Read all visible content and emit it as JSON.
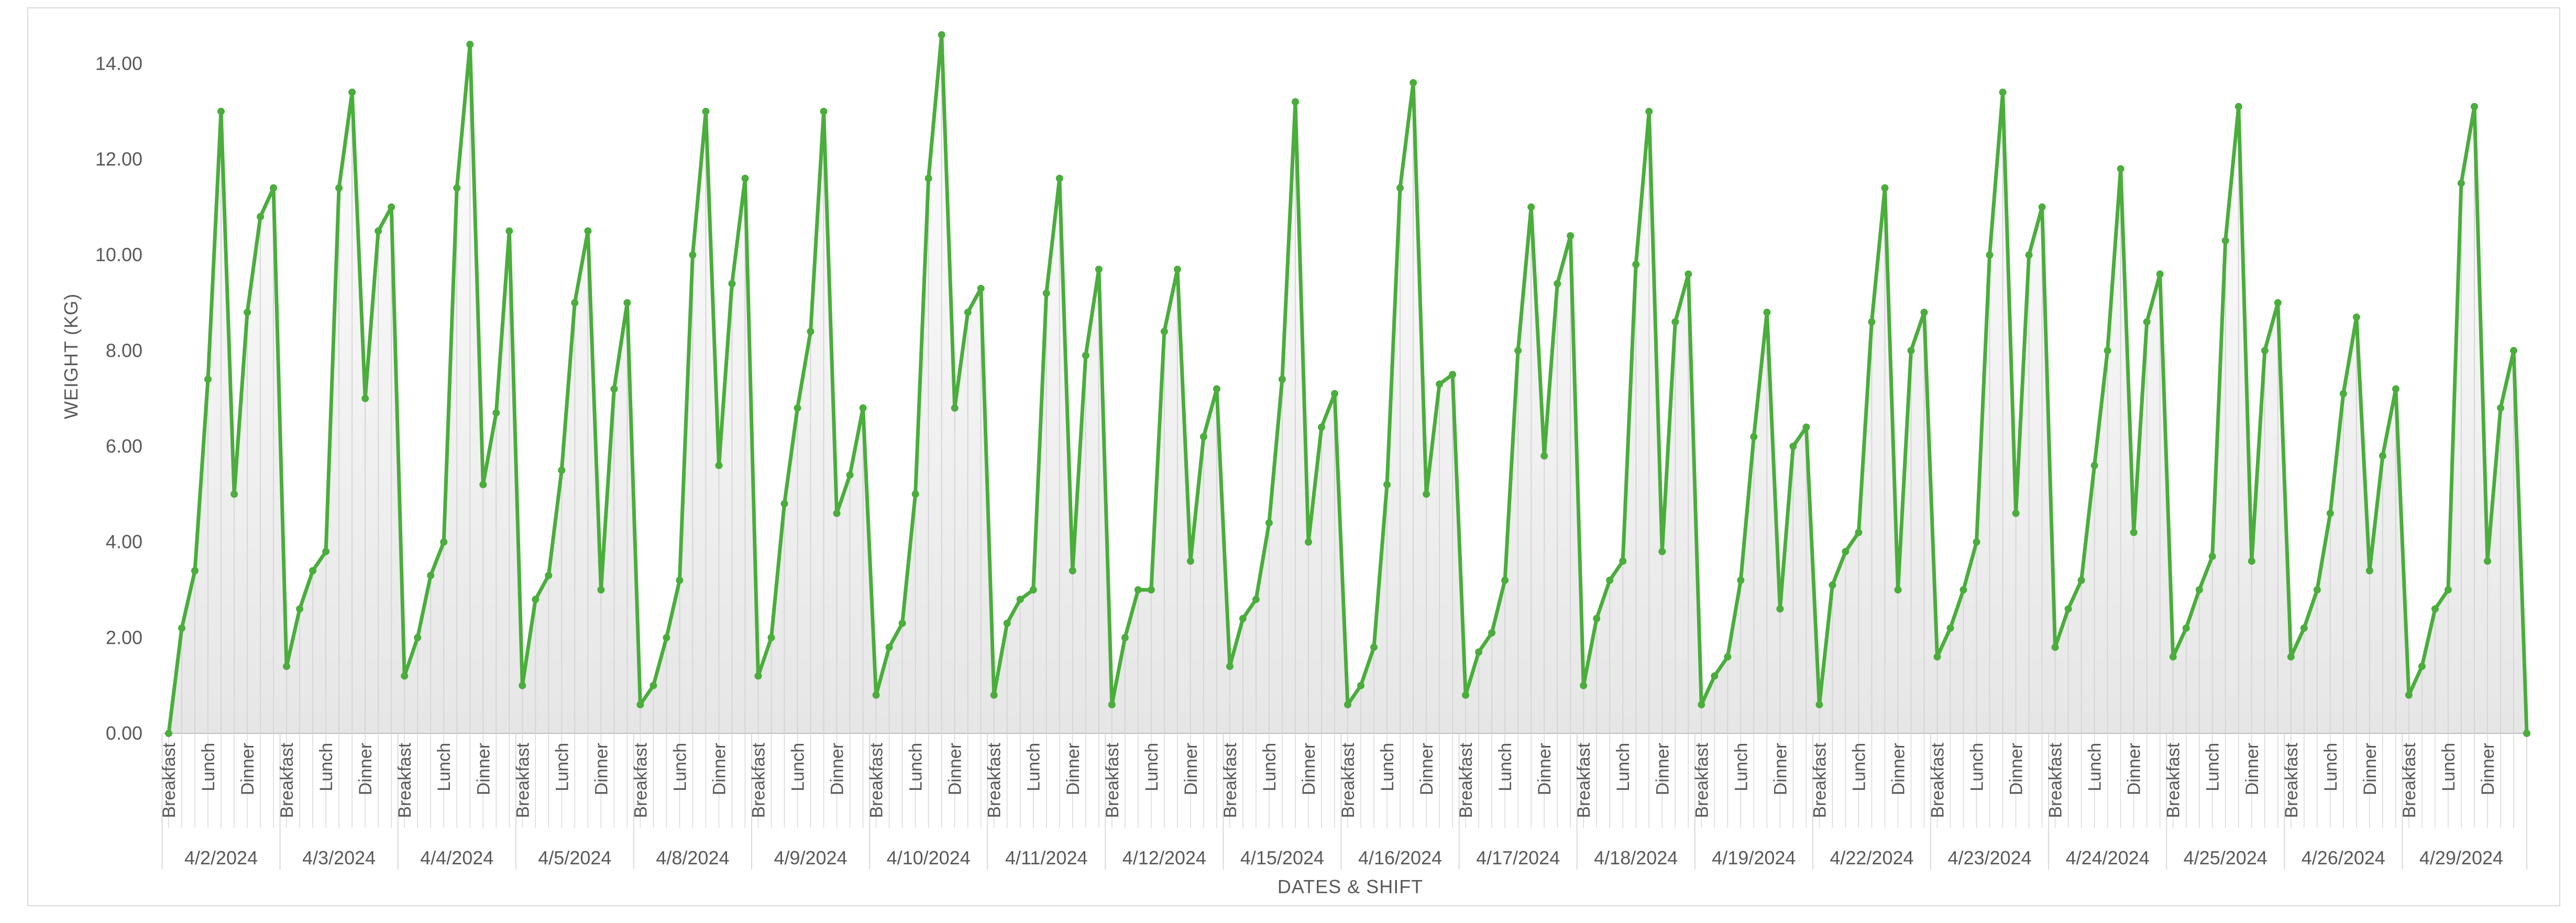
{
  "chart_data": {
    "type": "area",
    "xlabel": "DATES & SHIFT",
    "ylabel": "WEIGHT (KG)",
    "ylim": [
      0,
      15
    ],
    "yticks": [
      "0.00",
      "2.00",
      "4.00",
      "6.00",
      "8.00",
      "10.00",
      "12.00",
      "14.00"
    ],
    "grid": false,
    "legend": "none",
    "colors": {
      "line": "#4aad3c",
      "fill_top": "#ffffff",
      "fill_bottom": "#e6e6e6",
      "axis": "#bfbfbf",
      "text": "#595959"
    },
    "shift_labels": [
      "Breakfast",
      "Lunch",
      "Dinner"
    ],
    "groups": [
      {
        "date": "4/2/2024",
        "values": [
          0,
          2.2,
          3.4,
          7.4,
          13.0,
          5.0,
          8.8,
          10.8,
          11.4
        ]
      },
      {
        "date": "4/3/2024",
        "values": [
          1.4,
          2.6,
          3.4,
          3.8,
          11.4,
          13.4,
          7.0,
          10.5,
          11.0
        ]
      },
      {
        "date": "4/4/2024",
        "values": [
          1.2,
          2.0,
          3.3,
          4.0,
          11.4,
          14.4,
          5.2,
          6.7,
          10.5
        ]
      },
      {
        "date": "4/5/2024",
        "values": [
          1.0,
          2.8,
          3.3,
          5.5,
          9.0,
          10.5,
          3.0,
          7.2,
          9.0
        ]
      },
      {
        "date": "4/8/2024",
        "values": [
          0.6,
          1.0,
          2.0,
          3.2,
          10.0,
          13.0,
          5.6,
          9.4,
          11.6
        ]
      },
      {
        "date": "4/9/2024",
        "values": [
          1.2,
          2.0,
          4.8,
          6.8,
          8.4,
          13.0,
          4.6,
          5.4,
          6.8
        ]
      },
      {
        "date": "4/10/2024",
        "values": [
          0.8,
          1.8,
          2.3,
          5.0,
          11.6,
          14.6,
          6.8,
          8.8,
          9.3
        ]
      },
      {
        "date": "4/11/2024",
        "values": [
          0.8,
          2.3,
          2.8,
          3.0,
          9.2,
          11.6,
          3.4,
          7.9,
          9.7
        ]
      },
      {
        "date": "4/12/2024",
        "values": [
          0.6,
          2.0,
          3.0,
          3.0,
          8.4,
          9.7,
          3.6,
          6.2,
          7.2
        ]
      },
      {
        "date": "4/15/2024",
        "values": [
          1.4,
          2.4,
          2.8,
          4.4,
          7.4,
          13.2,
          4.0,
          6.4,
          7.1
        ]
      },
      {
        "date": "4/16/2024",
        "values": [
          0.6,
          1.0,
          1.8,
          5.2,
          11.4,
          13.6,
          5.0,
          7.3,
          7.5
        ]
      },
      {
        "date": "4/17/2024",
        "values": [
          0.8,
          1.7,
          2.1,
          3.2,
          8.0,
          11.0,
          5.8,
          9.4,
          10.4
        ]
      },
      {
        "date": "4/18/2024",
        "values": [
          1.0,
          2.4,
          3.2,
          3.6,
          9.8,
          13.0,
          3.8,
          8.6,
          9.6
        ]
      },
      {
        "date": "4/19/2024",
        "values": [
          0.6,
          1.2,
          1.6,
          3.2,
          6.2,
          8.8,
          2.6,
          6.0,
          6.4
        ]
      },
      {
        "date": "4/22/2024",
        "values": [
          0.6,
          3.1,
          3.8,
          4.2,
          8.6,
          11.4,
          3.0,
          8.0,
          8.8
        ]
      },
      {
        "date": "4/23/2024",
        "values": [
          1.6,
          2.2,
          3.0,
          4.0,
          10.0,
          13.4,
          4.6,
          10.0,
          11.0
        ]
      },
      {
        "date": "4/24/2024",
        "values": [
          1.8,
          2.6,
          3.2,
          5.6,
          8.0,
          11.8,
          4.2,
          8.6,
          9.6
        ]
      },
      {
        "date": "4/25/2024",
        "values": [
          1.6,
          2.2,
          3.0,
          3.7,
          10.3,
          13.1,
          3.6,
          8.0,
          9.0
        ]
      },
      {
        "date": "4/26/2024",
        "values": [
          1.6,
          2.2,
          3.0,
          4.6,
          7.1,
          8.7,
          3.4,
          5.8,
          7.2
        ]
      },
      {
        "date": "4/29/2024",
        "values": [
          0.8,
          1.4,
          2.6,
          3.0,
          11.5,
          13.1,
          3.6,
          6.8,
          8.0,
          0
        ]
      }
    ]
  }
}
